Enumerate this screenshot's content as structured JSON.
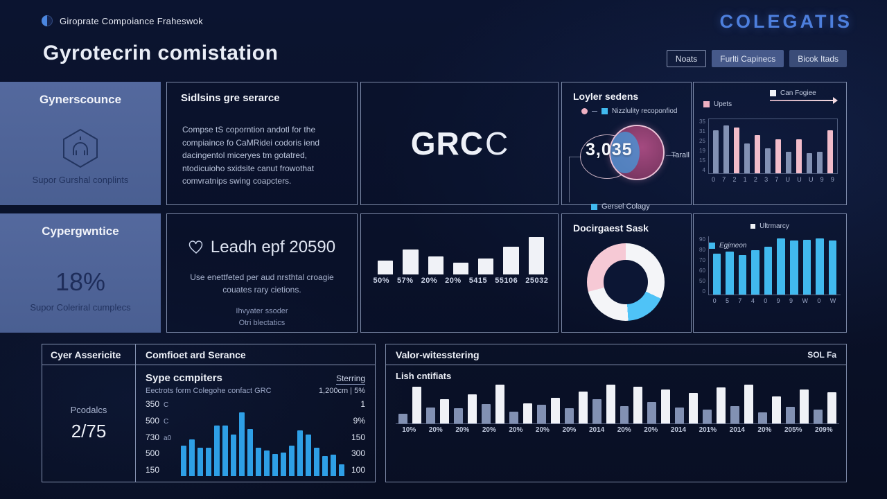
{
  "theme": {
    "brand_blue": "#4d7fdd",
    "palette": {
      "gray": "#8291b3",
      "pink": "#f2bcca",
      "white": "#f0f2f7",
      "cyan": "#41b9ee",
      "blue": "#2e9fe6"
    }
  },
  "header": {
    "logo_text": "Giroprate Compoiance Fraheswok",
    "page_title": "Gyrotecrin comistation",
    "brand": "COLEGATIS",
    "buttons": [
      {
        "label": "Noats"
      },
      {
        "label": "Furlti Capinecs"
      },
      {
        "label": "Bicok Itads"
      }
    ]
  },
  "cards": {
    "governance": {
      "title": "Gynerscounce",
      "subtitle": "Supor Gurshal conplints"
    },
    "cyber": {
      "title": "Cypergwntice",
      "value": "18%",
      "subtitle": "Supor Coleriral cumplecs"
    },
    "sidisins": {
      "title": "Sidlsins gre serarce",
      "body": "Compse tS coporntion andotl for the compiaince fo CaMRidei codoris iend dacingentol miceryes tm gotatred, ntodicuioho sxidsite canut frowothat comvratnips swing coapcters."
    },
    "grc": {
      "text_bold": "GRC",
      "text_light": "C"
    },
    "leadh": {
      "title": "Leadh epf 20590",
      "line1": "Use enettfeted per aud nrsthtal croagie couates rary cietions.",
      "line2": "Ihvyater ssoder",
      "line3": "Otri blectatics"
    }
  },
  "venn_panel": {
    "title": "Loyler sedens",
    "legend_top": "Nizzlulity recoponfiod",
    "value": "3,035",
    "label_right": "Tarall",
    "legend_bottom": "Gersel Colagy"
  },
  "donut_panel": {
    "title": "Docirgaest Sask"
  },
  "upets_panel": {
    "legend_left": "Upets",
    "legend_right": "Can Fogiee"
  },
  "egj_panel": {
    "legend_top": "Ultrmarcy",
    "legend_inner": "Egjmeon"
  },
  "bottom_table": {
    "col1_header": "Cyer Assericite",
    "col2_header": "Comfioet ard Serance",
    "left_label": "Pcodalcs",
    "left_value": "2/75",
    "right_title": "Sype ccmpiters",
    "right_title_right": "Sterring",
    "right_sub": "Eectrots form Colegohe confact GRC",
    "right_sub_right": "1,200cm | 5%",
    "axis_left": [
      {
        "num": "350",
        "suffix": "C"
      },
      {
        "num": "500",
        "suffix": "C"
      },
      {
        "num": "730",
        "suffix": "a0"
      },
      {
        "num": "500",
        "suffix": ""
      },
      {
        "num": "150",
        "suffix": ""
      }
    ],
    "axis_right": [
      "1",
      "9%",
      "150",
      "300",
      "100"
    ]
  },
  "bottom_right": {
    "header": "Valor-witesstering",
    "header_right": "SOL Fa",
    "label": "Lish cntifiats"
  },
  "chart_data": [
    {
      "id": "upets",
      "type": "bar",
      "legend": [
        "Upets",
        "Can Fogiee"
      ],
      "values": [
        80,
        88,
        84,
        55,
        70,
        46,
        62,
        40,
        62,
        37,
        40,
        80
      ],
      "colors": [
        "gray",
        "gray",
        "pink",
        "gray",
        "pink",
        "gray",
        "pink",
        "gray",
        "pink",
        "gray",
        "gray",
        "pink"
      ],
      "x_labels": [
        "0",
        "7",
        "2",
        "1",
        "2",
        "3",
        "7",
        "U",
        "U",
        "U",
        "9",
        "9"
      ],
      "y_ticks": [
        "35",
        "31",
        "25",
        "19",
        "15",
        "4"
      ]
    },
    {
      "id": "percent_bars",
      "type": "bar",
      "values": [
        35,
        62,
        46,
        30,
        40,
        70,
        95
      ],
      "colors": [
        "white",
        "white",
        "white",
        "white",
        "white",
        "white",
        "white"
      ],
      "x_labels": [
        "50%",
        "57%",
        "20%",
        "20%",
        "5415",
        "55106",
        "25032"
      ]
    },
    {
      "id": "donut",
      "type": "pie",
      "segments": [
        {
          "value": 32,
          "color": "#f4f5f8"
        },
        {
          "value": 17,
          "color": "#4fc3f7"
        },
        {
          "value": 22,
          "color": "#f4f5f8"
        },
        {
          "value": 29,
          "color": "#f6c9d5"
        }
      ]
    },
    {
      "id": "egjmeon",
      "type": "bar",
      "legend": [
        "Ultrmarcy",
        "Egjmeon"
      ],
      "values": [
        70,
        74,
        68,
        76,
        82,
        96,
        93,
        94,
        97,
        93
      ],
      "colors": [
        "cyan",
        "cyan",
        "cyan",
        "cyan",
        "cyan",
        "cyan",
        "cyan",
        "cyan",
        "cyan",
        "cyan"
      ],
      "x_labels": [
        "0",
        "5",
        "7",
        "4",
        "0",
        "9",
        "9",
        "W",
        "0",
        "W"
      ],
      "y_ticks": [
        "90",
        "80",
        "70",
        "60",
        "50",
        "0"
      ]
    },
    {
      "id": "sterring",
      "type": "bar",
      "values": [
        45,
        55,
        42,
        42,
        75,
        75,
        62,
        95,
        70,
        42,
        38,
        33,
        35,
        45,
        68,
        62,
        42,
        30,
        32,
        18
      ],
      "colors": [
        "blue",
        "blue",
        "blue",
        "blue",
        "blue",
        "blue",
        "blue",
        "blue",
        "blue",
        "blue",
        "blue",
        "blue",
        "blue",
        "blue",
        "blue",
        "blue",
        "blue",
        "blue",
        "blue",
        "blue"
      ]
    },
    {
      "id": "lish",
      "type": "bar",
      "values": [
        25,
        95,
        40,
        62,
        38,
        75,
        50,
        100,
        30,
        52,
        48,
        65,
        38,
        82,
        62,
        100,
        45,
        95,
        55,
        88,
        40,
        78,
        35,
        92,
        45,
        100,
        28,
        70,
        42,
        88,
        35,
        80
      ],
      "colors": [
        "gray",
        "white",
        "gray",
        "white",
        "gray",
        "white",
        "gray",
        "white",
        "gray",
        "white",
        "gray",
        "white",
        "gray",
        "white",
        "gray",
        "white",
        "gray",
        "white",
        "gray",
        "white",
        "gray",
        "white",
        "gray",
        "white",
        "gray",
        "white",
        "gray",
        "white",
        "gray",
        "white",
        "gray",
        "white"
      ],
      "x_labels": [
        "10%",
        "20%",
        "20%",
        "20%",
        "20%",
        "20%",
        "20%",
        "2014",
        "20%",
        "20%",
        "2014",
        "201%",
        "2014",
        "20%",
        "205%",
        "209%"
      ]
    }
  ]
}
